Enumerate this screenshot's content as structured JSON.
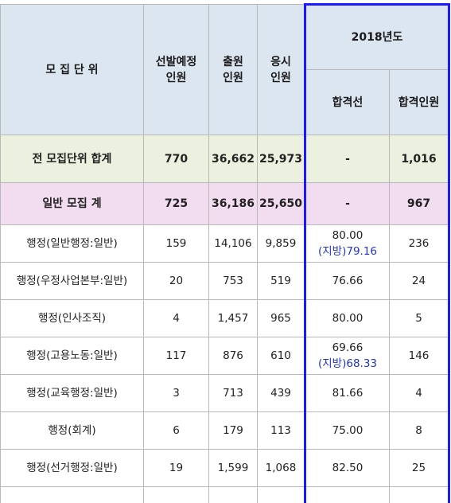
{
  "header": {
    "unit": "모 집 단 위",
    "planned_line1": "선발예정",
    "planned_line2": "인원",
    "applied_line1": "출원",
    "applied_line2": "인원",
    "tested_line1": "응시",
    "tested_line2": "인원",
    "year": "2018년도",
    "cutoff": "합격선",
    "passed": "합격인원"
  },
  "total": {
    "label": "전 모집단위 합계",
    "planned": "770",
    "applied": "36,662",
    "tested": "25,973",
    "cutoff": "-",
    "passed": "1,016"
  },
  "general": {
    "label": "일반 모집 계",
    "planned": "725",
    "applied": "36,186",
    "tested": "25,650",
    "cutoff": "-",
    "passed": "967"
  },
  "rows": [
    {
      "unit": "행정(일반행정:일반)",
      "planned": "159",
      "applied": "14,106",
      "tested": "9,859",
      "cutoff": "80.00",
      "cutoff_sub": "(지방)79.16",
      "passed": "236"
    },
    {
      "unit": "행정(우정사업본부:일반)",
      "planned": "20",
      "applied": "753",
      "tested": "519",
      "cutoff": "76.66",
      "passed": "24"
    },
    {
      "unit": "행정(인사조직)",
      "planned": "4",
      "applied": "1,457",
      "tested": "965",
      "cutoff": "80.00",
      "passed": "5"
    },
    {
      "unit": "행정(고용노동:일반)",
      "planned": "117",
      "applied": "876",
      "tested": "610",
      "cutoff": "69.66",
      "cutoff_sub": "(지방)68.33",
      "passed": "146"
    },
    {
      "unit": "행정(교육행정:일반)",
      "planned": "3",
      "applied": "713",
      "tested": "439",
      "cutoff": "81.66",
      "passed": "4"
    },
    {
      "unit": "행정(회계)",
      "planned": "6",
      "applied": "179",
      "tested": "113",
      "cutoff": "75.00",
      "passed": "8"
    },
    {
      "unit": "행정(선거행정:일반)",
      "planned": "19",
      "applied": "1,599",
      "tested": "1,068",
      "cutoff": "82.50",
      "passed": "25"
    }
  ],
  "colors": {
    "header_bg": "#dce6f1",
    "total_bg": "#ebf1de",
    "general_bg": "#f2dcef",
    "highlight_border": "#1a1aff",
    "sub_text": "#2233cc"
  }
}
